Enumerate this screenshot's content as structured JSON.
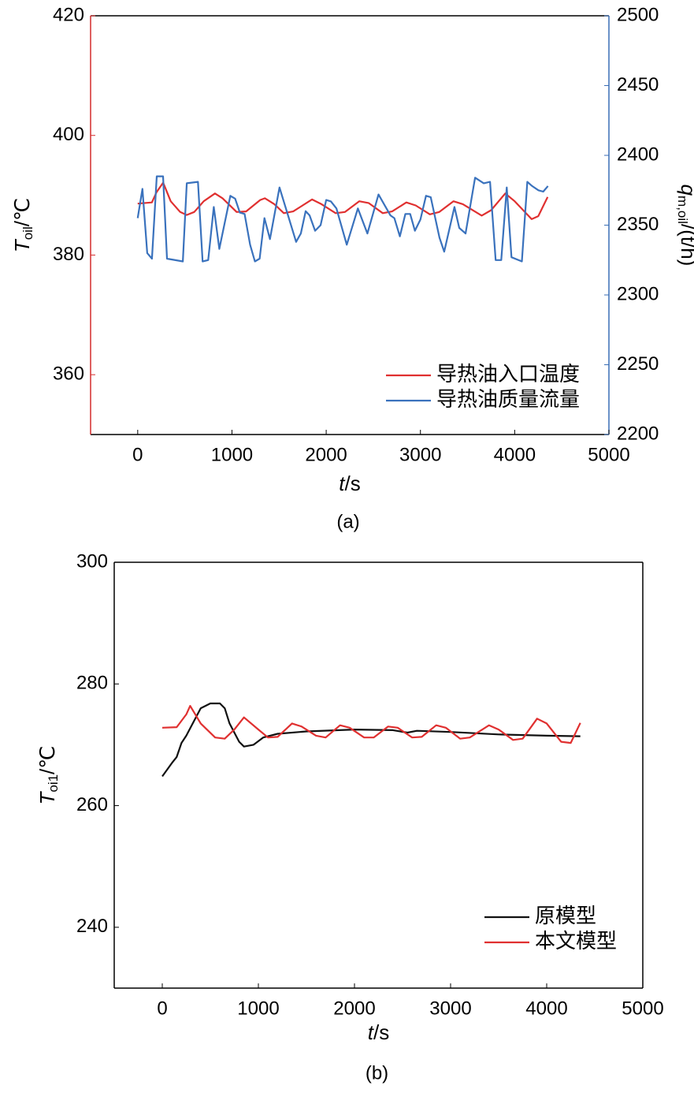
{
  "chart_data": [
    {
      "type": "line",
      "caption": "(a)",
      "xlabel": {
        "italic": "t",
        "rest": "/s"
      },
      "ylabel": {
        "italic": "T",
        "sub": "oil",
        "rest": "/℃"
      },
      "y2label": {
        "italic": "q",
        "sub": "m,oil",
        "rest": "/(t/h)"
      },
      "xlim": [
        -500,
        5000
      ],
      "xticks": [
        0,
        1000,
        2000,
        3000,
        4000,
        5000
      ],
      "ylim": [
        350,
        420
      ],
      "yticks": [
        360,
        380,
        400,
        420
      ],
      "y2lim": [
        2200,
        2500
      ],
      "y2ticks": [
        2200,
        2250,
        2300,
        2350,
        2400,
        2450,
        2500
      ],
      "yaxis_color": "#d42b2b",
      "y2axis_color": "#3a6eb5",
      "grid": false,
      "legend": "lower right",
      "series": [
        {
          "name": "导热油入口温度",
          "color": "#e03030",
          "x": [
            0,
            150,
            200,
            270,
            350,
            450,
            520,
            600,
            700,
            820,
            900,
            1050,
            1150,
            1300,
            1350,
            1450,
            1550,
            1650,
            1850,
            1950,
            2100,
            2200,
            2350,
            2450,
            2600,
            2700,
            2850,
            2950,
            3100,
            3200,
            3350,
            3450,
            3650,
            3750,
            3900,
            4000,
            4180,
            4250,
            4350
          ],
          "values": [
            388.6,
            388.8,
            390.5,
            392.1,
            389,
            387.2,
            386.7,
            387.2,
            389,
            390.3,
            389.5,
            387.2,
            387.3,
            389.2,
            389.5,
            388.5,
            387,
            387.3,
            389.3,
            388.5,
            387,
            387.2,
            389,
            388.7,
            387,
            387.3,
            388.8,
            388.3,
            386.8,
            387.2,
            389,
            388.5,
            386.6,
            387.5,
            390.3,
            389,
            386,
            386.5,
            389.7
          ]
        },
        {
          "name": "导热油质量流量",
          "color": "#3a72bd",
          "axis": "y2",
          "x": [
            0,
            50,
            101,
            151,
            202,
            269,
            311,
            479,
            521,
            639,
            689,
            748,
            807,
            866,
            983,
            1034,
            1084,
            1134,
            1193,
            1244,
            1294,
            1345,
            1403,
            1504,
            1681,
            1731,
            1782,
            1824,
            1882,
            1941,
            2000,
            2050,
            2109,
            2218,
            2336,
            2437,
            2555,
            2681,
            2723,
            2782,
            2840,
            2891,
            2941,
            3000,
            3059,
            3109,
            3202,
            3252,
            3361,
            3412,
            3479,
            3580,
            3672,
            3739,
            3798,
            3857,
            3916,
            3966,
            4076,
            4134,
            4185,
            4252,
            4303,
            4353
          ],
          "values": [
            2355,
            2376,
            2330,
            2326,
            2385,
            2385,
            2326,
            2324,
            2380,
            2381,
            2324,
            2325,
            2363,
            2333,
            2371,
            2369,
            2359,
            2358,
            2336,
            2324,
            2326,
            2355,
            2340,
            2377,
            2338,
            2344,
            2360,
            2357,
            2346,
            2350,
            2368,
            2367,
            2362,
            2336,
            2362,
            2344,
            2372,
            2357,
            2355,
            2342,
            2358,
            2358,
            2346,
            2354,
            2371,
            2370,
            2341,
            2331,
            2363,
            2348,
            2344,
            2384,
            2380,
            2381,
            2325,
            2325,
            2377,
            2327,
            2324,
            2381,
            2378,
            2375,
            2374,
            2378
          ]
        }
      ]
    },
    {
      "type": "line",
      "caption": "(b)",
      "xlabel": {
        "italic": "t",
        "rest": "/s"
      },
      "ylabel": {
        "italic": "T",
        "sub": "oi1",
        "rest": "/℃"
      },
      "xlim": [
        -500,
        5000
      ],
      "xticks": [
        0,
        1000,
        2000,
        3000,
        4000,
        5000
      ],
      "ylim": [
        230,
        300
      ],
      "yticks": [
        240,
        260,
        280,
        300
      ],
      "grid": false,
      "legend": "lower right",
      "series": [
        {
          "name": "原模型",
          "color": "#111111",
          "x": [
            0,
            100,
            150,
            200,
            250,
            300,
            400,
            500,
            600,
            650,
            700,
            800,
            850,
            950,
            1050,
            1200,
            1500,
            2000,
            2400,
            2550,
            2650,
            3000,
            3500,
            4000,
            4350
          ],
          "values": [
            264.8,
            267,
            268,
            270.3,
            271.5,
            273,
            276,
            276.8,
            276.8,
            276,
            273.5,
            270.5,
            269.7,
            270,
            271.2,
            271.8,
            272.2,
            272.5,
            272.4,
            272,
            272.3,
            272.1,
            271.7,
            271.5,
            271.4
          ]
        },
        {
          "name": "本文模型",
          "color": "#e03030",
          "x": [
            0,
            150,
            250,
            290,
            400,
            550,
            650,
            750,
            850,
            1000,
            1100,
            1200,
            1350,
            1450,
            1600,
            1700,
            1850,
            1950,
            2100,
            2200,
            2350,
            2450,
            2600,
            2700,
            2850,
            2950,
            3100,
            3200,
            3400,
            3500,
            3650,
            3750,
            3900,
            4000,
            4150,
            4250,
            4350
          ],
          "values": [
            272.8,
            272.9,
            275,
            276.4,
            273.5,
            271.2,
            271,
            272.5,
            274.5,
            272.5,
            271.2,
            271.3,
            273.5,
            273,
            271.5,
            271.2,
            273.2,
            272.8,
            271.2,
            271.2,
            273,
            272.8,
            271.2,
            271.3,
            273.2,
            272.8,
            271,
            271.2,
            273.2,
            272.5,
            270.8,
            271,
            274.3,
            273.5,
            270.5,
            270.3,
            273.6
          ]
        }
      ]
    }
  ]
}
